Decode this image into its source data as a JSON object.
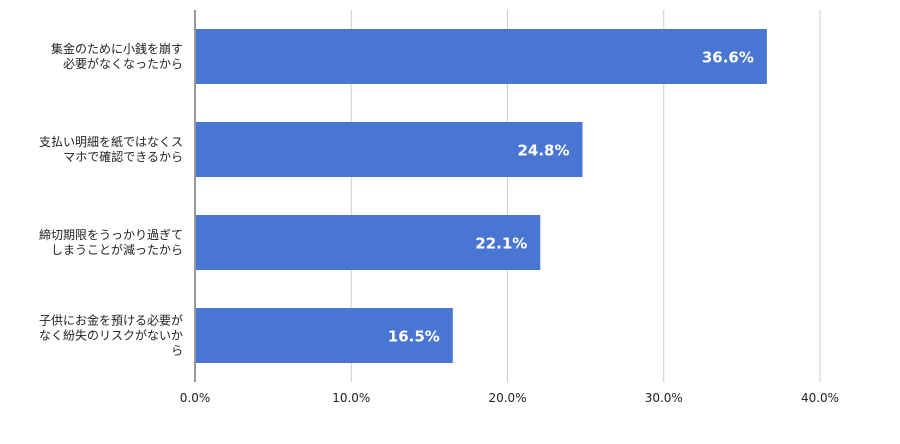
{
  "chart_data": {
    "type": "bar",
    "orientation": "horizontal",
    "categories": [
      [
        "集金のために小銭を崩す",
        "必要がなくなったから"
      ],
      [
        "支払い明細を紙ではなくス",
        "マホで確認できるから"
      ],
      [
        "締切期限をうっかり過ぎて",
        "しまうことが減ったから"
      ],
      [
        "子供にお金を預ける必要が",
        "なく紛失のリスクがないか",
        "ら"
      ]
    ],
    "values": [
      36.6,
      24.8,
      22.1,
      16.5
    ],
    "data_labels": [
      "36.6%",
      "24.8%",
      "22.1%",
      "16.5%"
    ],
    "x_ticks": [
      "0.0%",
      "10.0%",
      "20.0%",
      "30.0%",
      "40.0%"
    ],
    "xlim": [
      0,
      40
    ],
    "grid": true,
    "colors": {
      "bar": "#4a76d3",
      "grid": "#cccccc",
      "axis": "#333333",
      "label_inside": "#ffffff",
      "text": "#222222"
    },
    "title": "",
    "xlabel": "",
    "ylabel": ""
  }
}
